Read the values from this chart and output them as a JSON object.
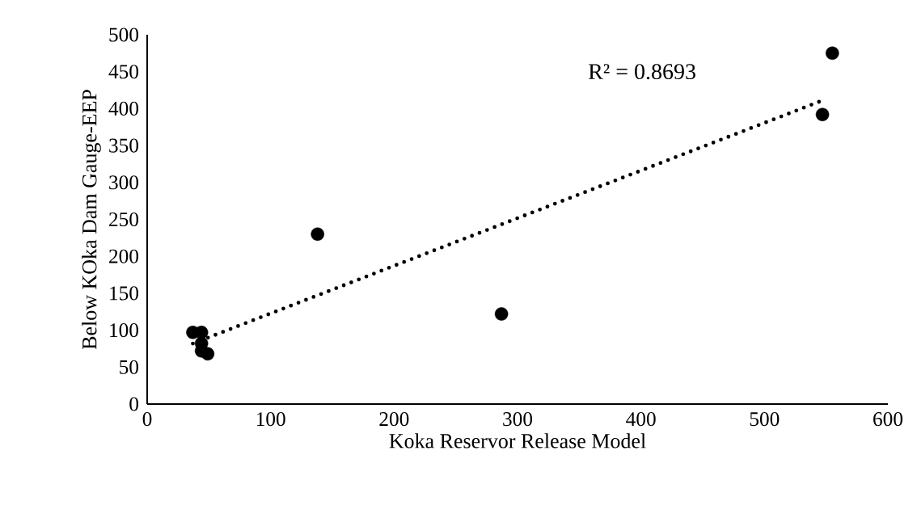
{
  "chart_data": {
    "type": "scatter",
    "xlabel": "Koka Reservor Release Model",
    "ylabel": "Below KOka Dam Gauge-EEP",
    "annotations": [
      "R² = 0.8693"
    ],
    "xlim": [
      0,
      600
    ],
    "ylim": [
      0,
      500
    ],
    "xticks": [
      0,
      100,
      200,
      300,
      400,
      500,
      600
    ],
    "yticks": [
      0,
      50,
      100,
      150,
      200,
      250,
      300,
      350,
      400,
      450,
      500
    ],
    "marker": "circle",
    "series": [
      {
        "color": "#000000",
        "x": [
          555,
          547,
          138,
          287,
          37,
          44,
          44,
          44,
          49
        ],
        "values": [
          475,
          392,
          230,
          122,
          97,
          97,
          82,
          72,
          68
        ]
      },
      {
        "type": "line",
        "color": "#000000",
        "line_style": "dotted",
        "marker": "none",
        "x": [
          37,
          547
        ],
        "values": [
          82,
          411
        ]
      }
    ]
  }
}
